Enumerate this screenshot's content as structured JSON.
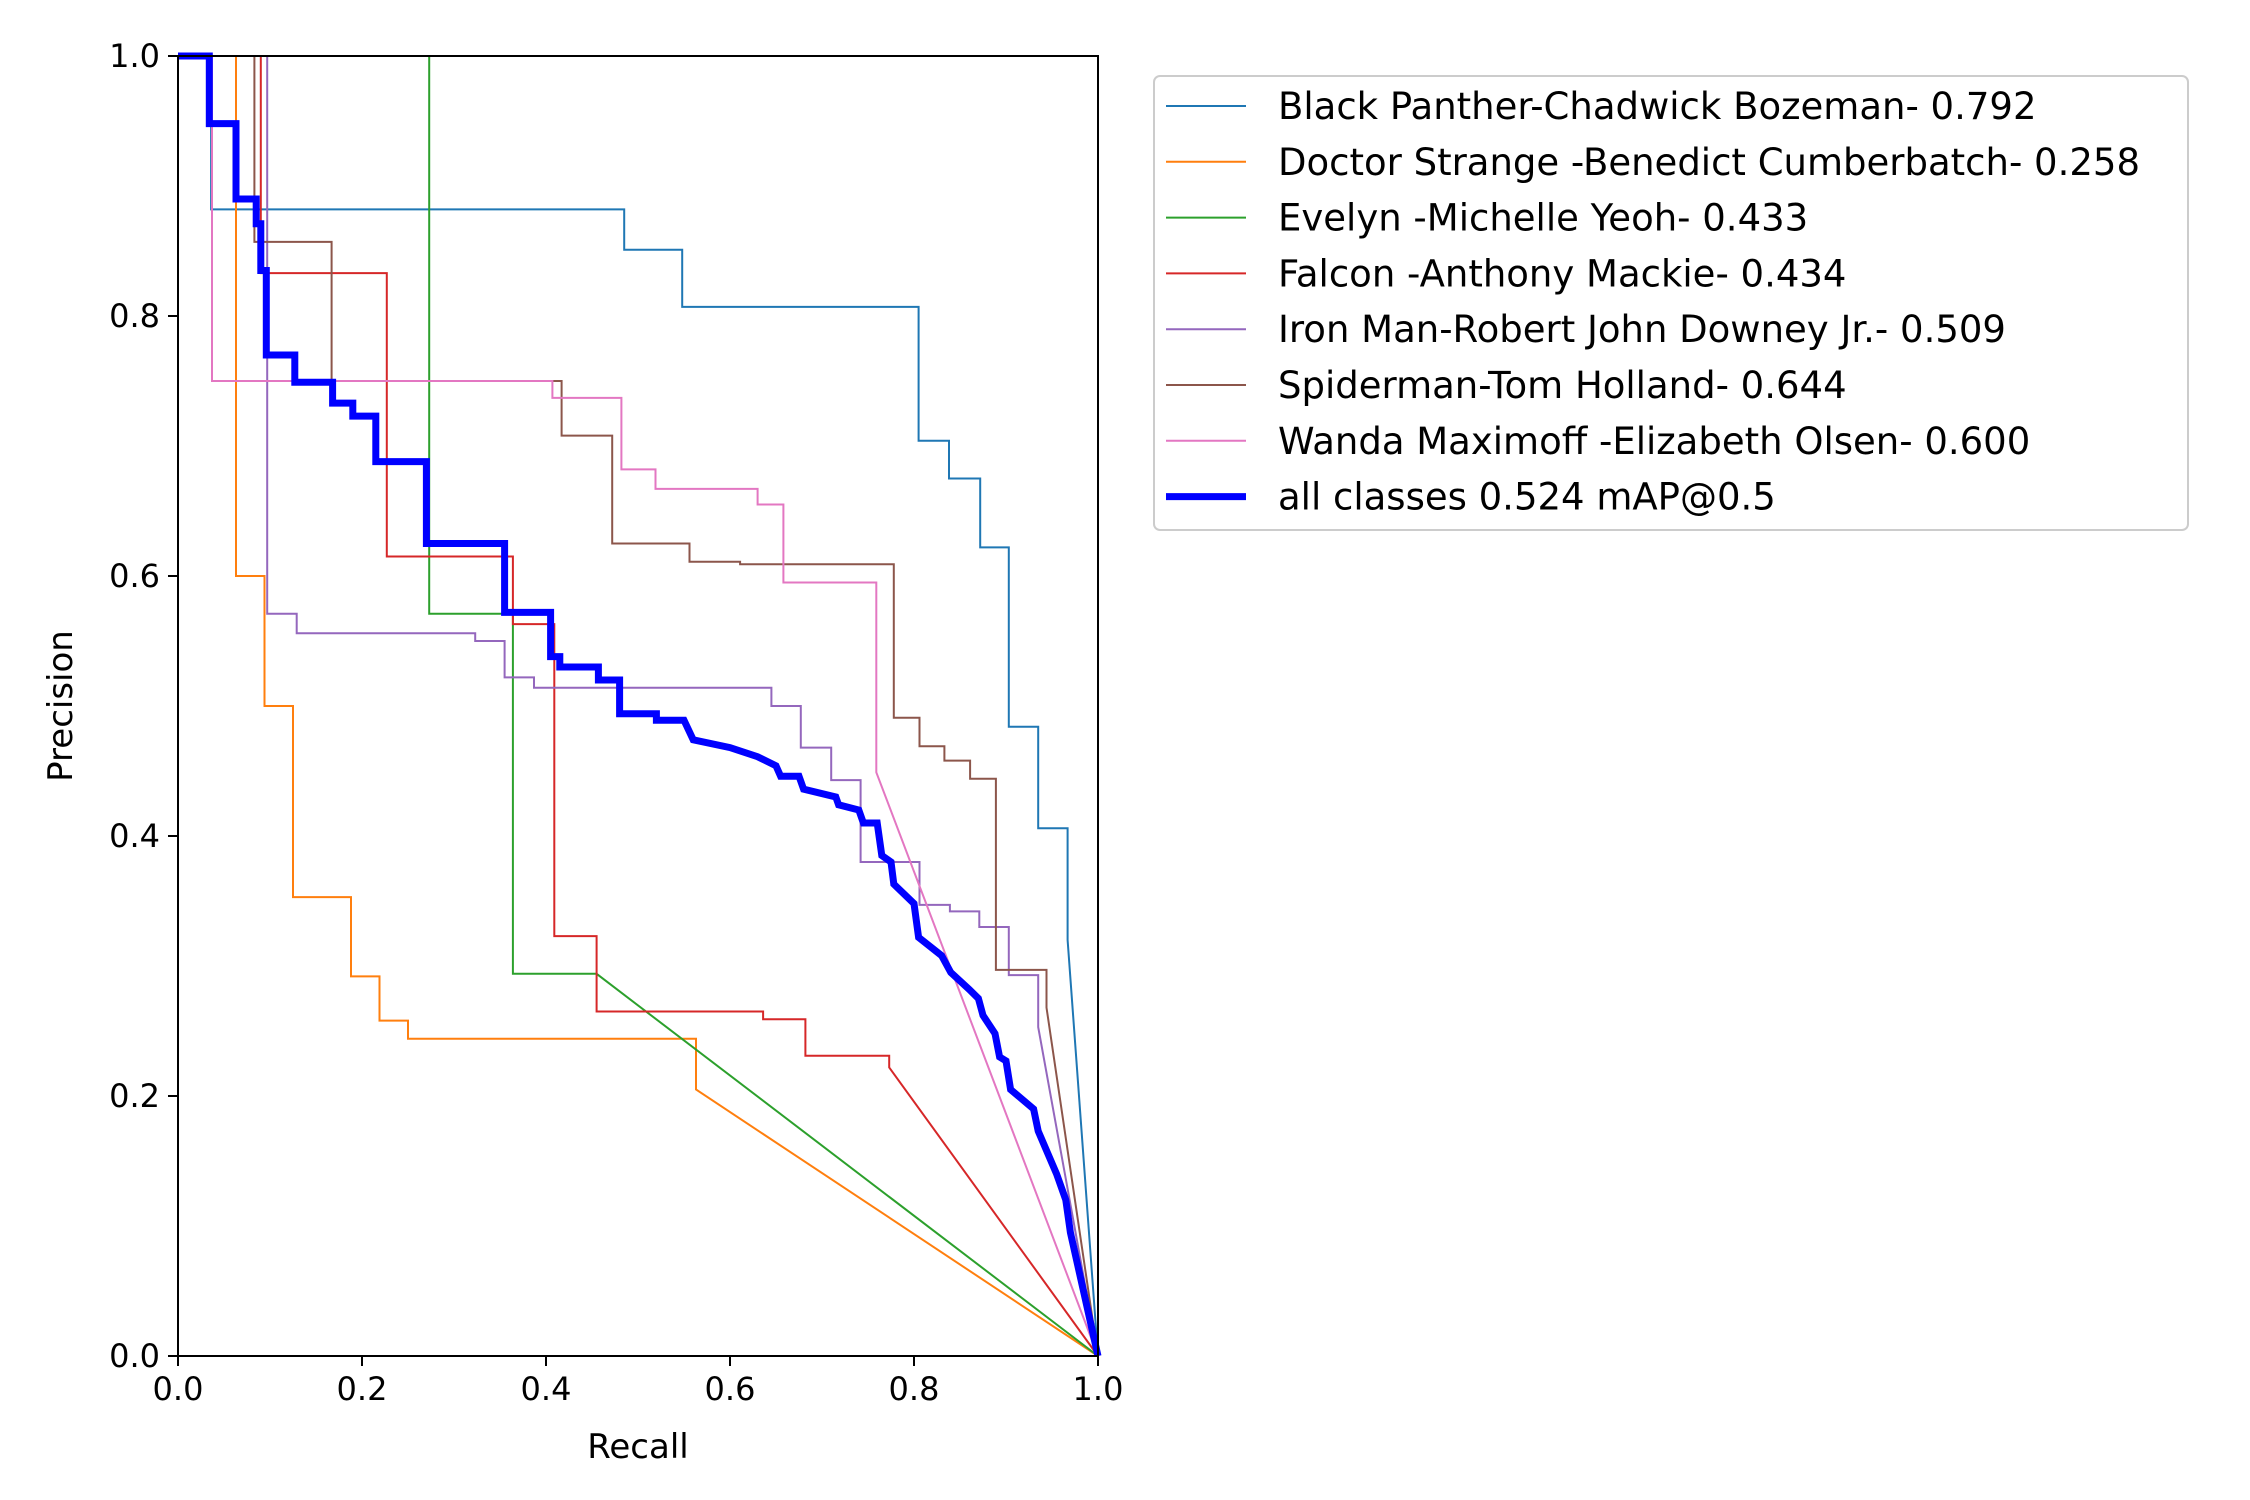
{
  "chart_data": {
    "type": "line",
    "xlabel": "Recall",
    "ylabel": "Precision",
    "xlim": [
      0,
      1
    ],
    "ylim": [
      0,
      1
    ],
    "xticks": [
      "0.0",
      "0.2",
      "0.4",
      "0.6",
      "0.8",
      "1.0"
    ],
    "yticks": [
      "0.0",
      "0.2",
      "0.4",
      "0.6",
      "0.8",
      "1.0"
    ],
    "grid": false,
    "legend_position": "outside-right-top",
    "series": [
      {
        "name": "Black Panther-Chadwick Bozeman- 0.792",
        "color": "#1f77b4",
        "width": 2,
        "points": [
          [
            0,
            1
          ],
          [
            0.036,
            1
          ],
          [
            0.036,
            0.882
          ],
          [
            0.485,
            0.882
          ],
          [
            0.485,
            0.851
          ],
          [
            0.548,
            0.851
          ],
          [
            0.548,
            0.807
          ],
          [
            0.805,
            0.807
          ],
          [
            0.805,
            0.704
          ],
          [
            0.838,
            0.704
          ],
          [
            0.838,
            0.675
          ],
          [
            0.872,
            0.675
          ],
          [
            0.872,
            0.622
          ],
          [
            0.903,
            0.622
          ],
          [
            0.903,
            0.484
          ],
          [
            0.935,
            0.484
          ],
          [
            0.935,
            0.406
          ],
          [
            0.967,
            0.406
          ],
          [
            0.967,
            0.32
          ],
          [
            1,
            0
          ]
        ]
      },
      {
        "name": "Doctor Strange -Benedict Cumberbatch- 0.258",
        "color": "#ff7f0e",
        "width": 2,
        "points": [
          [
            0,
            1
          ],
          [
            0.063,
            1
          ],
          [
            0.063,
            0.6
          ],
          [
            0.094,
            0.6
          ],
          [
            0.094,
            0.5
          ],
          [
            0.125,
            0.5
          ],
          [
            0.125,
            0.353
          ],
          [
            0.188,
            0.353
          ],
          [
            0.188,
            0.292
          ],
          [
            0.219,
            0.292
          ],
          [
            0.219,
            0.258
          ],
          [
            0.25,
            0.258
          ],
          [
            0.25,
            0.244
          ],
          [
            0.563,
            0.244
          ],
          [
            0.563,
            0.205
          ],
          [
            1,
            0
          ]
        ]
      },
      {
        "name": "Evelyn -Michelle Yeoh- 0.433",
        "color": "#2ca02c",
        "width": 2,
        "points": [
          [
            0,
            1
          ],
          [
            0.273,
            1
          ],
          [
            0.273,
            0.571
          ],
          [
            0.364,
            0.571
          ],
          [
            0.364,
            0.294
          ],
          [
            0.455,
            0.294
          ],
          [
            1,
            0
          ]
        ]
      },
      {
        "name": "Falcon -Anthony Mackie- 0.434",
        "color": "#d62728",
        "width": 2,
        "points": [
          [
            0,
            1
          ],
          [
            0.09,
            1
          ],
          [
            0.09,
            0.833
          ],
          [
            0.227,
            0.833
          ],
          [
            0.227,
            0.615
          ],
          [
            0.364,
            0.615
          ],
          [
            0.364,
            0.563
          ],
          [
            0.409,
            0.563
          ],
          [
            0.409,
            0.323
          ],
          [
            0.455,
            0.323
          ],
          [
            0.455,
            0.265
          ],
          [
            0.636,
            0.265
          ],
          [
            0.636,
            0.259
          ],
          [
            0.682,
            0.259
          ],
          [
            0.682,
            0.231
          ],
          [
            0.773,
            0.231
          ],
          [
            0.773,
            0.222
          ],
          [
            1,
            0
          ]
        ]
      },
      {
        "name": "Iron Man-Robert John Downey Jr.- 0.509",
        "color": "#9467bd",
        "width": 2,
        "points": [
          [
            0,
            1
          ],
          [
            0.097,
            1
          ],
          [
            0.097,
            0.571
          ],
          [
            0.129,
            0.571
          ],
          [
            0.129,
            0.556
          ],
          [
            0.323,
            0.556
          ],
          [
            0.323,
            0.55
          ],
          [
            0.355,
            0.55
          ],
          [
            0.355,
            0.522
          ],
          [
            0.387,
            0.522
          ],
          [
            0.387,
            0.514
          ],
          [
            0.645,
            0.514
          ],
          [
            0.645,
            0.5
          ],
          [
            0.677,
            0.5
          ],
          [
            0.677,
            0.468
          ],
          [
            0.71,
            0.468
          ],
          [
            0.71,
            0.443
          ],
          [
            0.742,
            0.443
          ],
          [
            0.742,
            0.38
          ],
          [
            0.806,
            0.38
          ],
          [
            0.806,
            0.347
          ],
          [
            0.839,
            0.347
          ],
          [
            0.839,
            0.342
          ],
          [
            0.871,
            0.342
          ],
          [
            0.871,
            0.33
          ],
          [
            0.903,
            0.33
          ],
          [
            0.903,
            0.293
          ],
          [
            0.935,
            0.293
          ],
          [
            0.935,
            0.253
          ],
          [
            1,
            0
          ]
        ]
      },
      {
        "name": "Spiderman-Tom Holland- 0.644",
        "color": "#8c564b",
        "width": 2,
        "points": [
          [
            0,
            1
          ],
          [
            0.083,
            1
          ],
          [
            0.083,
            0.857
          ],
          [
            0.167,
            0.857
          ],
          [
            0.167,
            0.75
          ],
          [
            0.417,
            0.75
          ],
          [
            0.417,
            0.708
          ],
          [
            0.472,
            0.708
          ],
          [
            0.472,
            0.625
          ],
          [
            0.556,
            0.625
          ],
          [
            0.556,
            0.611
          ],
          [
            0.611,
            0.611
          ],
          [
            0.611,
            0.609
          ],
          [
            0.778,
            0.609
          ],
          [
            0.778,
            0.491
          ],
          [
            0.806,
            0.491
          ],
          [
            0.806,
            0.469
          ],
          [
            0.833,
            0.469
          ],
          [
            0.833,
            0.458
          ],
          [
            0.861,
            0.458
          ],
          [
            0.861,
            0.444
          ],
          [
            0.889,
            0.444
          ],
          [
            0.889,
            0.297
          ],
          [
            0.944,
            0.297
          ],
          [
            0.944,
            0.268
          ],
          [
            1,
            0
          ]
        ]
      },
      {
        "name": "Wanda Maximoff -Elizabeth Olsen- 0.600",
        "color": "#e377c2",
        "width": 2,
        "points": [
          [
            0,
            1
          ],
          [
            0.037,
            1
          ],
          [
            0.037,
            0.75
          ],
          [
            0.407,
            0.75
          ],
          [
            0.407,
            0.737
          ],
          [
            0.482,
            0.737
          ],
          [
            0.482,
            0.682
          ],
          [
            0.519,
            0.682
          ],
          [
            0.519,
            0.667
          ],
          [
            0.63,
            0.667
          ],
          [
            0.63,
            0.655
          ],
          [
            0.658,
            0.655
          ],
          [
            0.658,
            0.595
          ],
          [
            0.759,
            0.595
          ],
          [
            0.759,
            0.449
          ],
          [
            1,
            0
          ]
        ]
      },
      {
        "name": "all classes 0.524 mAP@0.5",
        "color": "#0000ff",
        "width": 7,
        "points": [
          [
            0,
            1
          ],
          [
            0.034,
            1
          ],
          [
            0.034,
            0.948
          ],
          [
            0.063,
            0.948
          ],
          [
            0.063,
            0.89
          ],
          [
            0.085,
            0.89
          ],
          [
            0.085,
            0.871
          ],
          [
            0.09,
            0.871
          ],
          [
            0.09,
            0.835
          ],
          [
            0.096,
            0.835
          ],
          [
            0.096,
            0.77
          ],
          [
            0.127,
            0.77
          ],
          [
            0.127,
            0.749
          ],
          [
            0.168,
            0.749
          ],
          [
            0.168,
            0.733
          ],
          [
            0.19,
            0.733
          ],
          [
            0.19,
            0.723
          ],
          [
            0.215,
            0.723
          ],
          [
            0.215,
            0.688
          ],
          [
            0.27,
            0.688
          ],
          [
            0.27,
            0.625
          ],
          [
            0.355,
            0.625
          ],
          [
            0.355,
            0.572
          ],
          [
            0.405,
            0.572
          ],
          [
            0.405,
            0.538
          ],
          [
            0.415,
            0.538
          ],
          [
            0.415,
            0.53
          ],
          [
            0.457,
            0.53
          ],
          [
            0.457,
            0.52
          ],
          [
            0.48,
            0.52
          ],
          [
            0.48,
            0.494
          ],
          [
            0.52,
            0.494
          ],
          [
            0.52,
            0.489
          ],
          [
            0.55,
            0.489
          ],
          [
            0.56,
            0.474
          ],
          [
            0.6,
            0.468
          ],
          [
            0.63,
            0.461
          ],
          [
            0.65,
            0.454
          ],
          [
            0.655,
            0.446
          ],
          [
            0.675,
            0.446
          ],
          [
            0.68,
            0.436
          ],
          [
            0.715,
            0.43
          ],
          [
            0.718,
            0.424
          ],
          [
            0.74,
            0.42
          ],
          [
            0.745,
            0.41
          ],
          [
            0.76,
            0.41
          ],
          [
            0.765,
            0.385
          ],
          [
            0.775,
            0.38
          ],
          [
            0.778,
            0.363
          ],
          [
            0.8,
            0.348
          ],
          [
            0.805,
            0.322
          ],
          [
            0.83,
            0.308
          ],
          [
            0.84,
            0.295
          ],
          [
            0.86,
            0.282
          ],
          [
            0.87,
            0.275
          ],
          [
            0.875,
            0.262
          ],
          [
            0.888,
            0.248
          ],
          [
            0.893,
            0.23
          ],
          [
            0.9,
            0.227
          ],
          [
            0.905,
            0.205
          ],
          [
            0.93,
            0.19
          ],
          [
            0.935,
            0.173
          ],
          [
            0.955,
            0.14
          ],
          [
            0.965,
            0.12
          ],
          [
            0.97,
            0.095
          ],
          [
            1,
            0
          ]
        ]
      }
    ]
  }
}
